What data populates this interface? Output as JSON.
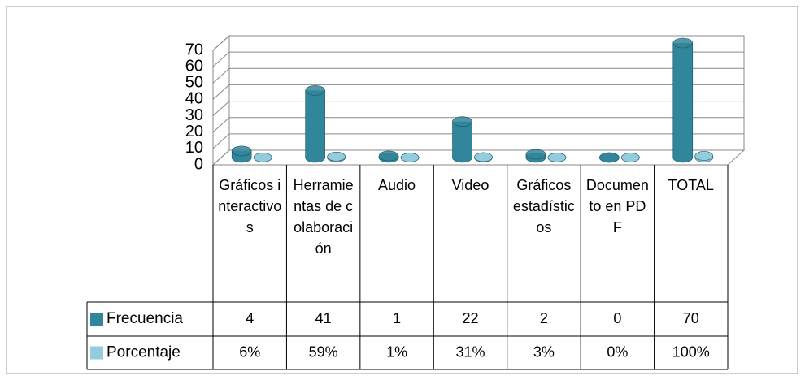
{
  "chart_data": {
    "type": "bar3d",
    "categories": [
      "Gráficos interactivos",
      "Herramientas de colaboración",
      "Audio",
      "Video",
      "Gráficos estadísticos",
      "Documento en PDF",
      "TOTAL"
    ],
    "series": [
      {
        "name": "Frecuencia",
        "color": "#31869b",
        "values": [
          4,
          41,
          1,
          22,
          2,
          0,
          70
        ]
      },
      {
        "name": "Porcentaje",
        "color": "#93cddd",
        "values": [
          0.06,
          0.59,
          0.01,
          0.31,
          0.03,
          0,
          1
        ],
        "value_labels": [
          "6%",
          "59%",
          "1%",
          "31%",
          "3%",
          "0%",
          "100%"
        ]
      }
    ],
    "ylim": [
      0,
      70
    ],
    "yticks": [
      0,
      10,
      20,
      30,
      40,
      50,
      60,
      70
    ],
    "grid": true
  }
}
